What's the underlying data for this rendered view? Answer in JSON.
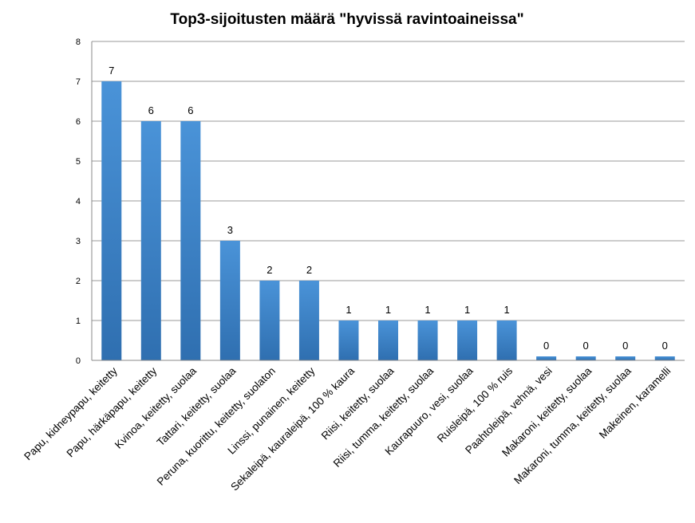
{
  "chart_data": {
    "type": "bar",
    "title": "Top3-sijoitusten määrä \"hyvissä ravintoaineissa\"",
    "xlabel": "",
    "ylabel": "",
    "ylim": [
      0,
      8
    ],
    "yticks": [
      "0",
      "1",
      "2",
      "3",
      "4",
      "5",
      "6",
      "7",
      "8"
    ],
    "grid": true,
    "legend": "none",
    "bar_color": "#3d83c9",
    "categories": [
      "Papu, kidneypapu, keitetty",
      "Papu, härkäpapu, keitetty",
      "Kvinoa, keitetty, suolaa",
      "Tattari, keitetty, suolaa",
      "Peruna, kuorittu, keitetty, suolaton",
      "Linssi, punainen, keitetty",
      "Sekaleipä, kauraleipä, 100 % kaura",
      "Riisi, keitetty, suolaa",
      "Riisi, tumma, keitetty, suolaa",
      "Kaurapuuro, vesi, suolaa",
      "Ruisleipä, 100 % ruis",
      "Paahtoleipä, vehnä, vesi",
      "Makaroni, keitetty, suolaa",
      "Makaroni, tumma, keitetty, suolaa",
      "Makeinen, karamelli"
    ],
    "values": [
      7,
      6,
      6,
      3,
      2,
      2,
      1,
      1,
      1,
      1,
      1,
      0,
      0,
      0,
      0
    ],
    "data_labels": [
      "7",
      "6",
      "6",
      "3",
      "2",
      "2",
      "1",
      "1",
      "1",
      "1",
      "1",
      "0",
      "0",
      "0",
      "0"
    ]
  }
}
